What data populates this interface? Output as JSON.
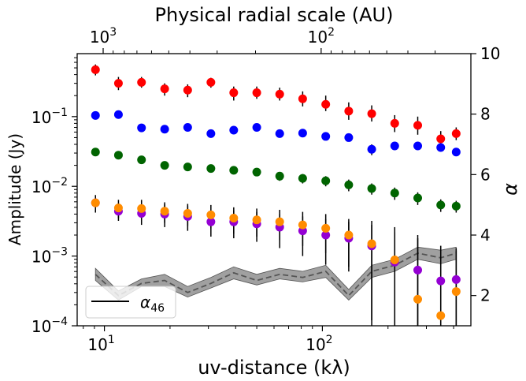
{
  "chart_data": {
    "type": "scatter",
    "title": "Physical radial scale (AU)",
    "xlabel": "uv-distance (kλ)",
    "ylabel": "Amplitude (Jy)",
    "y2label": "α",
    "xscale": "log",
    "yscale": "log",
    "xlim": [
      7.5,
      480
    ],
    "ylim": [
      0.0001,
      0.8
    ],
    "y2lim": [
      1,
      10
    ],
    "x_ticks": [
      {
        "value": 10,
        "label": "10",
        "sup": "1"
      },
      {
        "value": 100,
        "label": "10",
        "sup": "2"
      }
    ],
    "y_ticks": [
      {
        "value": 0.0001,
        "label": "10",
        "sup": "−4"
      },
      {
        "value": 0.001,
        "label": "10",
        "sup": "−3"
      },
      {
        "value": 0.01,
        "label": "10",
        "sup": "−2"
      },
      {
        "value": 0.1,
        "label": "10",
        "sup": "−1"
      }
    ],
    "y2_ticks": [
      {
        "value": 2,
        "label": "2"
      },
      {
        "value": 4,
        "label": "4"
      },
      {
        "value": 6,
        "label": "6"
      },
      {
        "value": 8,
        "label": "8"
      },
      {
        "value": 10,
        "label": "10"
      }
    ],
    "top_ticks": [
      {
        "value": 9.87,
        "label": "10",
        "sup": "3"
      },
      {
        "value": 98.7,
        "label": "10",
        "sup": "2"
      }
    ],
    "x": [
      9.1,
      11.6,
      14.8,
      18.9,
      24.1,
      30.8,
      39.2,
      50.0,
      63.7,
      81.2,
      103.6,
      132.1,
      168.4,
      214.7,
      273.8,
      349.1,
      411.0
    ],
    "series": [
      {
        "color": "#ff0000",
        "values": [
          0.47,
          0.3,
          0.31,
          0.25,
          0.24,
          0.31,
          0.22,
          0.22,
          0.21,
          0.18,
          0.15,
          0.12,
          0.11,
          0.08,
          0.075,
          0.048,
          0.057
        ],
        "err_lo": [
          0.39,
          0.24,
          0.26,
          0.2,
          0.19,
          0.26,
          0.17,
          0.18,
          0.17,
          0.14,
          0.12,
          0.09,
          0.085,
          0.06,
          0.055,
          0.037,
          0.046
        ],
        "err_hi": [
          0.56,
          0.37,
          0.37,
          0.3,
          0.29,
          0.36,
          0.27,
          0.27,
          0.26,
          0.23,
          0.2,
          0.16,
          0.145,
          0.105,
          0.1,
          0.062,
          0.07
        ]
      },
      {
        "color": "#0000ff",
        "values": [
          0.104,
          0.107,
          0.069,
          0.066,
          0.07,
          0.057,
          0.064,
          0.07,
          0.057,
          0.058,
          0.052,
          0.05,
          0.034,
          0.038,
          0.038,
          0.036,
          0.031
        ],
        "err_lo": [
          0.098,
          0.1,
          0.063,
          0.061,
          0.065,
          0.05,
          0.058,
          0.065,
          0.051,
          0.053,
          0.047,
          0.045,
          0.028,
          0.033,
          0.034,
          0.032,
          0.028
        ],
        "err_hi": [
          0.11,
          0.114,
          0.075,
          0.071,
          0.075,
          0.064,
          0.07,
          0.075,
          0.063,
          0.063,
          0.057,
          0.055,
          0.04,
          0.043,
          0.042,
          0.04,
          0.034
        ]
      },
      {
        "color": "#006400",
        "values": [
          0.031,
          0.028,
          0.024,
          0.02,
          0.019,
          0.018,
          0.017,
          0.016,
          0.014,
          0.013,
          0.012,
          0.0105,
          0.0093,
          0.008,
          0.0068,
          0.0054,
          0.0052
        ],
        "err_lo": [
          0.029,
          0.026,
          0.022,
          0.018,
          0.017,
          0.016,
          0.015,
          0.014,
          0.012,
          0.011,
          0.01,
          0.0085,
          0.0076,
          0.0064,
          0.0054,
          0.0043,
          0.0042
        ],
        "err_hi": [
          0.033,
          0.03,
          0.026,
          0.022,
          0.021,
          0.02,
          0.019,
          0.018,
          0.016,
          0.015,
          0.014,
          0.0125,
          0.011,
          0.0096,
          0.0082,
          0.0065,
          0.0062
        ]
      },
      {
        "color": "#9400d3",
        "values": [
          0.0058,
          0.0044,
          0.0041,
          0.004,
          0.0037,
          0.0031,
          0.0031,
          0.0029,
          0.0026,
          0.0023,
          0.002,
          0.0018,
          0.0014,
          0.00082,
          0.00063,
          0.00044,
          0.00046
        ],
        "err_lo": [
          0.0042,
          0.0032,
          0.0028,
          0.0026,
          0.0023,
          0.0019,
          0.0018,
          0.0016,
          0.0013,
          0.001,
          0.00075,
          0.0006,
          0.00012,
          0.0001,
          0.0001,
          0.0001,
          0.0001
        ],
        "err_hi": [
          0.0074,
          0.0057,
          0.0055,
          0.0055,
          0.0052,
          0.0044,
          0.0045,
          0.0043,
          0.004,
          0.0037,
          0.0034,
          0.0031,
          0.0028,
          0.0022,
          0.0018,
          0.0014,
          0.0013
        ]
      },
      {
        "color": "#ff8c00",
        "values": [
          0.0058,
          0.0049,
          0.0048,
          0.0044,
          0.0041,
          0.0039,
          0.0035,
          0.0033,
          0.0031,
          0.0028,
          0.0025,
          0.002,
          0.0015,
          0.00088,
          0.00024,
          0.00014,
          0.00031
        ],
        "err_lo": [
          0.0043,
          0.0035,
          0.0034,
          0.003,
          0.0027,
          0.0025,
          0.0021,
          0.0019,
          0.0017,
          0.0014,
          0.0011,
          0.0007,
          0.0001,
          0.0001,
          0.0001,
          0.0001,
          0.0001
        ],
        "err_hi": [
          0.0075,
          0.0064,
          0.0064,
          0.0059,
          0.0056,
          0.0054,
          0.005,
          0.0048,
          0.0046,
          0.0043,
          0.004,
          0.0034,
          0.0032,
          0.0026,
          0.002,
          0.0014,
          0.0012
        ]
      }
    ],
    "alpha": {
      "name": "α₄₆",
      "legend_label": "α",
      "legend_sub": "46",
      "color": "#808080",
      "values": [
        2.7,
        2.0,
        2.4,
        2.5,
        2.1,
        2.4,
        2.75,
        2.5,
        2.7,
        2.6,
        2.8,
        2.0,
        2.8,
        3.0,
        3.4,
        3.25,
        3.4
      ],
      "band_lo": [
        2.5,
        1.85,
        2.3,
        2.3,
        1.95,
        2.25,
        2.55,
        2.35,
        2.55,
        2.45,
        2.6,
        1.85,
        2.6,
        2.8,
        3.2,
        3.05,
        3.2
      ],
      "band_hi": [
        2.9,
        2.15,
        2.55,
        2.7,
        2.3,
        2.6,
        2.95,
        2.7,
        2.9,
        2.8,
        3.0,
        2.2,
        3.0,
        3.2,
        3.6,
        3.5,
        3.6
      ]
    },
    "legend_placement": "lower-left",
    "grid": false
  }
}
